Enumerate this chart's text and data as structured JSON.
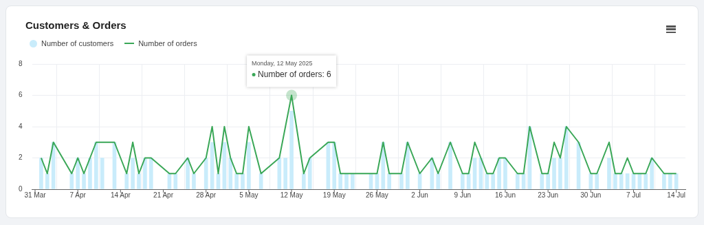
{
  "chart_data": {
    "type": "bar",
    "title": "Customers & Orders",
    "x": [
      "2025-04-01",
      "2025-04-02",
      "2025-04-03",
      "2025-04-06",
      "2025-04-07",
      "2025-04-08",
      "2025-04-09",
      "2025-04-10",
      "2025-04-11",
      "2025-04-13",
      "2025-04-15",
      "2025-04-16",
      "2025-04-17",
      "2025-04-18",
      "2025-04-19",
      "2025-04-22",
      "2025-04-23",
      "2025-04-25",
      "2025-04-26",
      "2025-04-28",
      "2025-04-29",
      "2025-04-30",
      "2025-05-01",
      "2025-05-02",
      "2025-05-03",
      "2025-05-04",
      "2025-05-05",
      "2025-05-07",
      "2025-05-10",
      "2025-05-11",
      "2025-05-12",
      "2025-05-14",
      "2025-05-15",
      "2025-05-18",
      "2025-05-19",
      "2025-05-20",
      "2025-05-21",
      "2025-05-22",
      "2025-05-25",
      "2025-05-26",
      "2025-05-27",
      "2025-05-28",
      "2025-05-30",
      "2025-05-31",
      "2025-06-02",
      "2025-06-04",
      "2025-06-05",
      "2025-06-07",
      "2025-06-09",
      "2025-06-10",
      "2025-06-11",
      "2025-06-12",
      "2025-06-13",
      "2025-06-14",
      "2025-06-15",
      "2025-06-16",
      "2025-06-18",
      "2025-06-19",
      "2025-06-20",
      "2025-06-22",
      "2025-06-23",
      "2025-06-24",
      "2025-06-25",
      "2025-06-26",
      "2025-06-28",
      "2025-06-30",
      "2025-07-01",
      "2025-07-03",
      "2025-07-04",
      "2025-07-05",
      "2025-07-06",
      "2025-07-07",
      "2025-07-08",
      "2025-07-09",
      "2025-07-10",
      "2025-07-12",
      "2025-07-13",
      "2025-07-14"
    ],
    "series": [
      {
        "name": "Number of customers",
        "color": "#c9ecfb",
        "values": [
          2,
          1,
          3,
          1,
          2,
          1,
          2,
          3,
          2,
          3,
          1,
          2,
          1,
          2,
          2,
          1,
          1,
          2,
          1,
          2,
          3,
          1,
          3,
          2,
          1,
          1,
          3,
          1,
          2,
          2,
          5,
          1,
          2,
          3,
          3,
          1,
          1,
          1,
          1,
          1,
          3,
          1,
          1,
          3,
          1,
          2,
          1,
          3,
          1,
          1,
          2,
          2,
          1,
          1,
          2,
          2,
          1,
          1,
          4,
          1,
          1,
          2,
          2,
          4,
          3,
          1,
          1,
          2,
          1,
          1,
          1,
          1,
          1,
          1,
          2,
          1,
          1,
          1
        ]
      },
      {
        "name": "Number of orders",
        "type": "line",
        "color": "#3aa757",
        "values": [
          2,
          1,
          3,
          1,
          2,
          1,
          2,
          3,
          3,
          3,
          1,
          3,
          1,
          2,
          2,
          1,
          1,
          2,
          1,
          2,
          4,
          1,
          4,
          2,
          1,
          1,
          4,
          1,
          2,
          4,
          6,
          1,
          2,
          3,
          3,
          1,
          1,
          1,
          1,
          1,
          3,
          1,
          1,
          3,
          1,
          2,
          1,
          3,
          1,
          1,
          3,
          2,
          1,
          1,
          2,
          2,
          1,
          1,
          4,
          1,
          1,
          3,
          2,
          4,
          3,
          1,
          1,
          3,
          1,
          1,
          2,
          1,
          1,
          1,
          2,
          1,
          1,
          1
        ]
      }
    ],
    "xlim": [
      "2025-03-30T12:00",
      "2025-07-15T12:00"
    ],
    "xticks": [
      {
        "value": "2025-03-31",
        "label": "31 Mar"
      },
      {
        "value": "2025-04-07",
        "label": "7 Apr"
      },
      {
        "value": "2025-04-14",
        "label": "14 Apr"
      },
      {
        "value": "2025-04-21",
        "label": "21 Apr"
      },
      {
        "value": "2025-04-28",
        "label": "28 Apr"
      },
      {
        "value": "2025-05-05",
        "label": "5 May"
      },
      {
        "value": "2025-05-12",
        "label": "12 May"
      },
      {
        "value": "2025-05-19",
        "label": "19 May"
      },
      {
        "value": "2025-05-26",
        "label": "26 May"
      },
      {
        "value": "2025-06-02",
        "label": "2 Jun"
      },
      {
        "value": "2025-06-09",
        "label": "9 Jun"
      },
      {
        "value": "2025-06-16",
        "label": "16 Jun"
      },
      {
        "value": "2025-06-23",
        "label": "23 Jun"
      },
      {
        "value": "2025-06-30",
        "label": "30 Jun"
      },
      {
        "value": "2025-07-07",
        "label": "7 Jul"
      },
      {
        "value": "2025-07-14",
        "label": "14 Jul"
      }
    ],
    "ylim": [
      0,
      8
    ],
    "yticks": [
      0,
      2,
      4,
      6,
      8
    ],
    "grid": true,
    "legend": "top left",
    "marker": "none",
    "line_style": "solid",
    "annotations": [
      "Monday, 12 May 2025",
      {
        "text": "Number of orders: 6",
        "x": "2025-05-12",
        "y": 6
      }
    ]
  }
}
